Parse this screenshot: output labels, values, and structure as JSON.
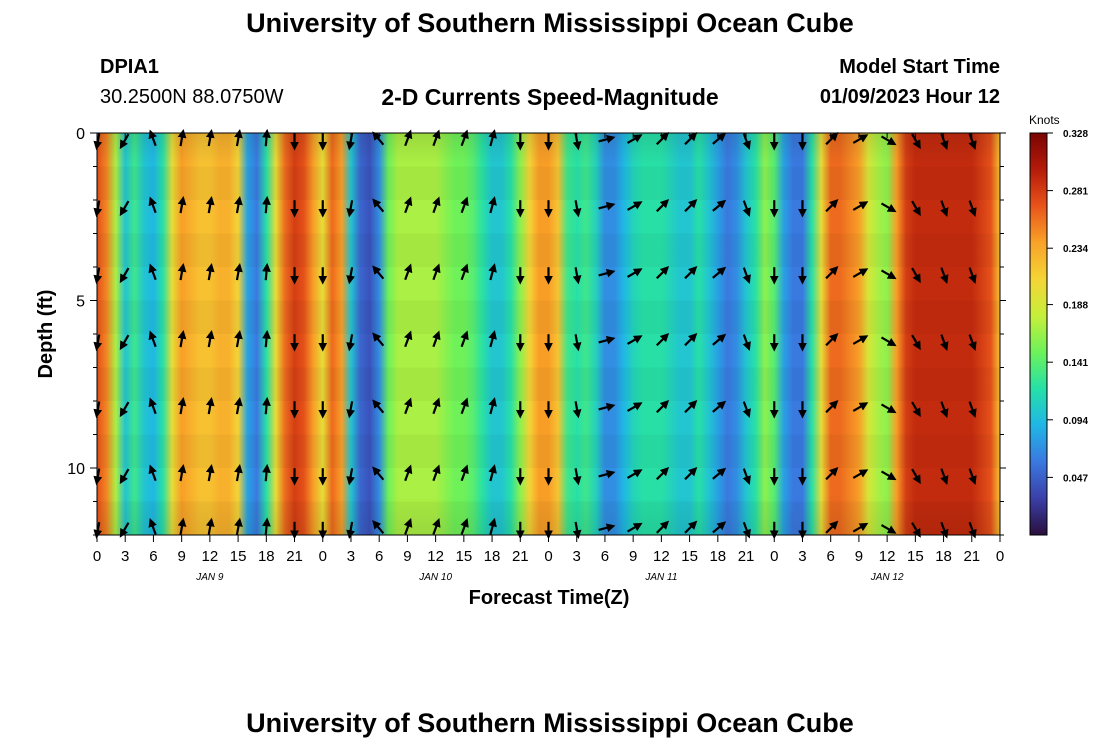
{
  "header": {
    "title": "University of Southern Mississippi Ocean Cube",
    "station": "DPIA1",
    "coords": "30.2500N  88.0750W",
    "subtitle": "2-D Currents Speed-Magnitude",
    "start_label": "Model Start Time",
    "start_time": "01/09/2023 Hour 12"
  },
  "footer": {
    "title": "University of Southern Mississippi Ocean Cube"
  },
  "chart_data": {
    "type": "heatmap",
    "title": "2-D Currents Speed-Magnitude",
    "xlabel": "Forecast Time(Z)",
    "ylabel": "Depth (ft)",
    "x_ticks": [
      "0",
      "3",
      "6",
      "9",
      "12",
      "15",
      "18",
      "21",
      "0",
      "3",
      "6",
      "9",
      "12",
      "15",
      "18",
      "21",
      "0",
      "3",
      "6",
      "9",
      "12",
      "15",
      "18",
      "21",
      "0",
      "3",
      "6",
      "9",
      "12",
      "15",
      "18",
      "21",
      "0"
    ],
    "x_range_hours": [
      0,
      96
    ],
    "day_labels": [
      {
        "label": "JAN 9",
        "hour": 12
      },
      {
        "label": "JAN 10",
        "hour": 36
      },
      {
        "label": "JAN 11",
        "hour": 60
      },
      {
        "label": "JAN 12",
        "hour": 84
      }
    ],
    "y_ticks": [
      "0",
      "5",
      "10"
    ],
    "y_tick_values": [
      0,
      5,
      10
    ],
    "ylim": [
      0,
      12
    ],
    "colorbar": {
      "unit": "Knots",
      "ticks": [
        "0.328",
        "0.281",
        "0.234",
        "0.188",
        "0.141",
        "0.094",
        "0.047"
      ],
      "min": 0.0,
      "max": 0.328,
      "colors": [
        "#2a0f3d",
        "#3b3fa8",
        "#3a78e0",
        "#20b6e6",
        "#26e0a8",
        "#6cf25a",
        "#c6ef3a",
        "#f5d536",
        "#f9a228",
        "#e8541a",
        "#b51b0a",
        "#7a0403"
      ]
    },
    "speed_hours": [
      0,
      1,
      2,
      3,
      4,
      5,
      6,
      7,
      8,
      9,
      10,
      11,
      12,
      13,
      14,
      15,
      16,
      17,
      18,
      19,
      20,
      21,
      22,
      23,
      24,
      25,
      26,
      27,
      28,
      29,
      30,
      31,
      32,
      33,
      34,
      35,
      36,
      37,
      38,
      39,
      40,
      41,
      42,
      43,
      44,
      45,
      46,
      47,
      48,
      49,
      50,
      51,
      52,
      53,
      54,
      55,
      56,
      57,
      58,
      59,
      60,
      61,
      62,
      63,
      64,
      65,
      66,
      67,
      68,
      69,
      70,
      71,
      72,
      73,
      74,
      75,
      76,
      77,
      78,
      79,
      80,
      81,
      82,
      83,
      84,
      85,
      86,
      87,
      88,
      89,
      90,
      91,
      92,
      93,
      94,
      95,
      96
    ],
    "speed": [
      0.27,
      0.25,
      0.17,
      0.1,
      0.13,
      0.1,
      0.09,
      0.12,
      0.2,
      0.24,
      0.23,
      0.22,
      0.22,
      0.23,
      0.23,
      0.21,
      0.08,
      0.06,
      0.12,
      0.2,
      0.26,
      0.28,
      0.27,
      0.24,
      0.2,
      0.26,
      0.24,
      0.1,
      0.05,
      0.04,
      0.07,
      0.15,
      0.17,
      0.17,
      0.17,
      0.17,
      0.17,
      0.16,
      0.15,
      0.15,
      0.14,
      0.12,
      0.1,
      0.1,
      0.12,
      0.16,
      0.21,
      0.24,
      0.24,
      0.22,
      0.13,
      0.12,
      0.13,
      0.11,
      0.07,
      0.07,
      0.09,
      0.11,
      0.12,
      0.12,
      0.12,
      0.11,
      0.1,
      0.1,
      0.12,
      0.1,
      0.08,
      0.06,
      0.07,
      0.1,
      0.12,
      0.16,
      0.14,
      0.08,
      0.06,
      0.06,
      0.12,
      0.2,
      0.26,
      0.26,
      0.25,
      0.24,
      0.19,
      0.17,
      0.16,
      0.24,
      0.28,
      0.29,
      0.29,
      0.29,
      0.29,
      0.29,
      0.29,
      0.29,
      0.28,
      0.27,
      0.22
    ],
    "arrow_columns": [
      {
        "hour": 0,
        "dir": 200
      },
      {
        "hour": 3,
        "dir": 210
      },
      {
        "hour": 6,
        "dir": 340
      },
      {
        "hour": 9,
        "dir": 10
      },
      {
        "hour": 12,
        "dir": 10
      },
      {
        "hour": 15,
        "dir": 10
      },
      {
        "hour": 18,
        "dir": 5
      },
      {
        "hour": 21,
        "dir": 180
      },
      {
        "hour": 24,
        "dir": 180
      },
      {
        "hour": 27,
        "dir": 190
      },
      {
        "hour": 30,
        "dir": 320
      },
      {
        "hour": 33,
        "dir": 20
      },
      {
        "hour": 36,
        "dir": 20
      },
      {
        "hour": 39,
        "dir": 20
      },
      {
        "hour": 42,
        "dir": 15
      },
      {
        "hour": 45,
        "dir": 180
      },
      {
        "hour": 48,
        "dir": 180
      },
      {
        "hour": 51,
        "dir": 170
      },
      {
        "hour": 54,
        "dir": 75
      },
      {
        "hour": 57,
        "dir": 60
      },
      {
        "hour": 60,
        "dir": 45
      },
      {
        "hour": 63,
        "dir": 45
      },
      {
        "hour": 66,
        "dir": 50
      },
      {
        "hour": 69,
        "dir": 160
      },
      {
        "hour": 72,
        "dir": 180
      },
      {
        "hour": 75,
        "dir": 180
      },
      {
        "hour": 78,
        "dir": 45
      },
      {
        "hour": 81,
        "dir": 60
      },
      {
        "hour": 84,
        "dir": 120
      },
      {
        "hour": 87,
        "dir": 150
      },
      {
        "hour": 90,
        "dir": 160
      },
      {
        "hour": 93,
        "dir": 160
      }
    ],
    "arrow_depths": [
      0.2,
      2.2,
      4.2,
      6.2,
      8.2,
      10.2,
      11.8
    ]
  }
}
